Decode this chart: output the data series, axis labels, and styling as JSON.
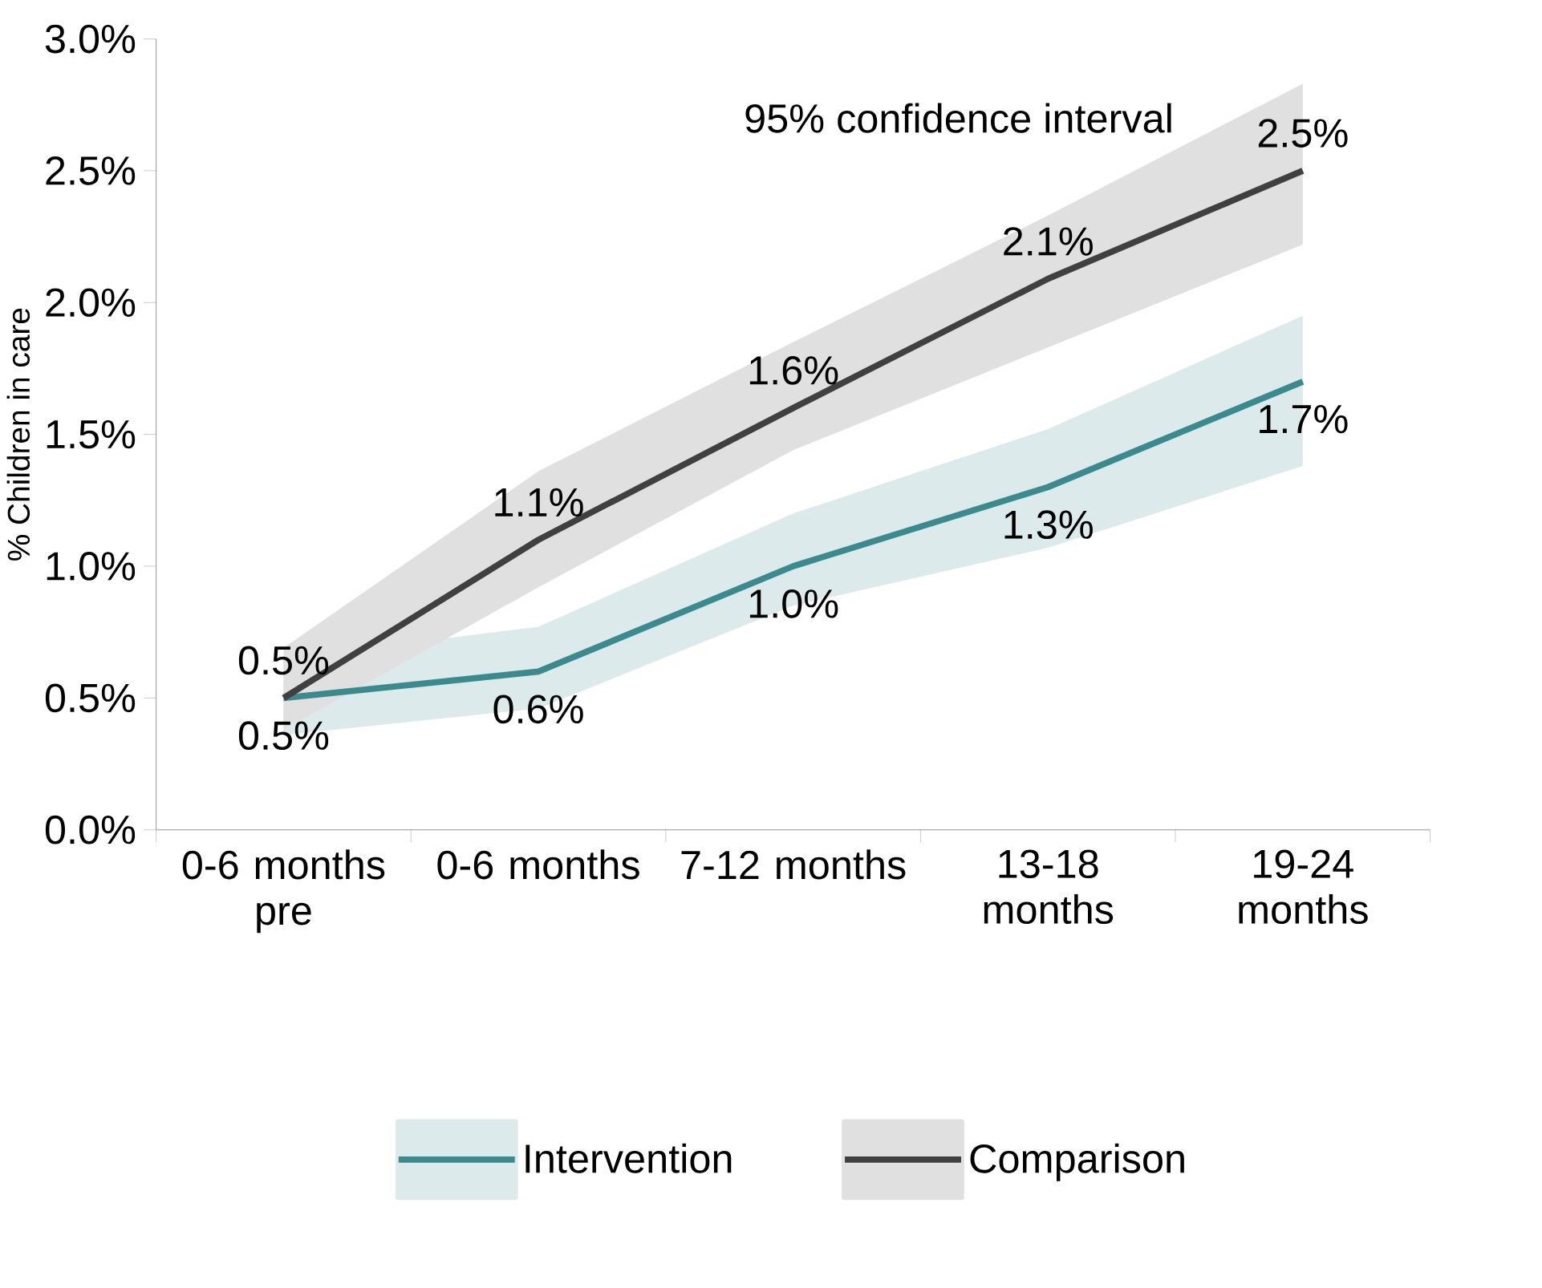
{
  "chart_data": {
    "type": "line",
    "ylabel": "% Children in care",
    "categories": [
      "0-6 months pre",
      "0-6 months",
      "7-12 months",
      "13-18 months",
      "19-24 months"
    ],
    "series": [
      {
        "name": "Intervention",
        "color": "#3a8a8e",
        "values": [
          0.5,
          0.6,
          1.0,
          1.3,
          1.7
        ],
        "lower": [
          0.36,
          0.46,
          0.85,
          1.07,
          1.38
        ],
        "upper": [
          0.65,
          0.77,
          1.2,
          1.52,
          1.95
        ],
        "value_labels": [
          "0.5%",
          "0.6%",
          "1.0%",
          "1.3%",
          "1.7%"
        ]
      },
      {
        "name": "Comparison",
        "color": "#404040",
        "values": [
          0.5,
          1.1,
          1.6,
          2.09,
          2.5
        ],
        "lower": [
          0.38,
          0.92,
          1.44,
          1.83,
          2.22
        ],
        "upper": [
          0.69,
          1.36,
          1.85,
          2.33,
          2.83
        ],
        "value_labels": [
          "0.5%",
          "1.1%",
          "1.6%",
          "2.1%",
          "2.5%"
        ]
      }
    ],
    "ylim": [
      0,
      3
    ],
    "yticks": [
      {
        "value": 0,
        "label": "0.0%"
      },
      {
        "value": 0.5,
        "label": "0.5%"
      },
      {
        "value": 1,
        "label": "1.0%"
      },
      {
        "value": 1.5,
        "label": "1.5%"
      },
      {
        "value": 2,
        "label": "2.0%"
      },
      {
        "value": 2.5,
        "label": "2.5%"
      },
      {
        "value": 3,
        "label": "3.0%"
      }
    ],
    "annotations": [
      "95% confidence interval"
    ],
    "legend": "bottom",
    "grid": false,
    "marker": "none",
    "line_style": "solid"
  }
}
